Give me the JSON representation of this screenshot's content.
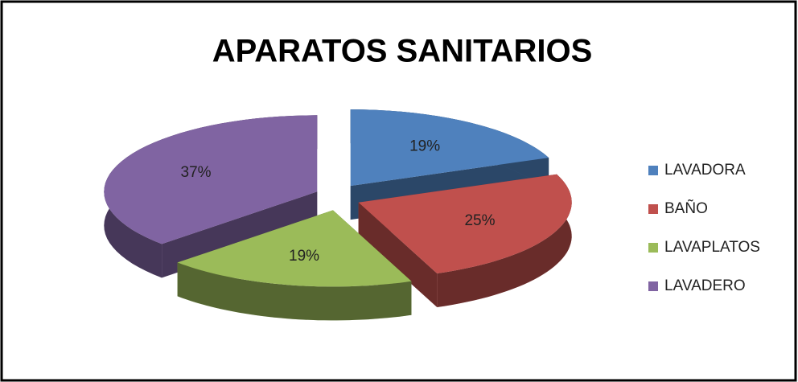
{
  "chart_data": {
    "type": "pie",
    "title": "APARATOS SANITARIOS",
    "categories": [
      "LAVADORA",
      "BAÑO",
      "LAVAPLATOS",
      "LAVADERO"
    ],
    "values": [
      19,
      25,
      19,
      37
    ],
    "value_labels": [
      "19%",
      "25%",
      "19%",
      "37%"
    ],
    "colors": [
      "#4f81bd",
      "#c0504d",
      "#9bbb59",
      "#8064a2"
    ],
    "legend": "right"
  }
}
